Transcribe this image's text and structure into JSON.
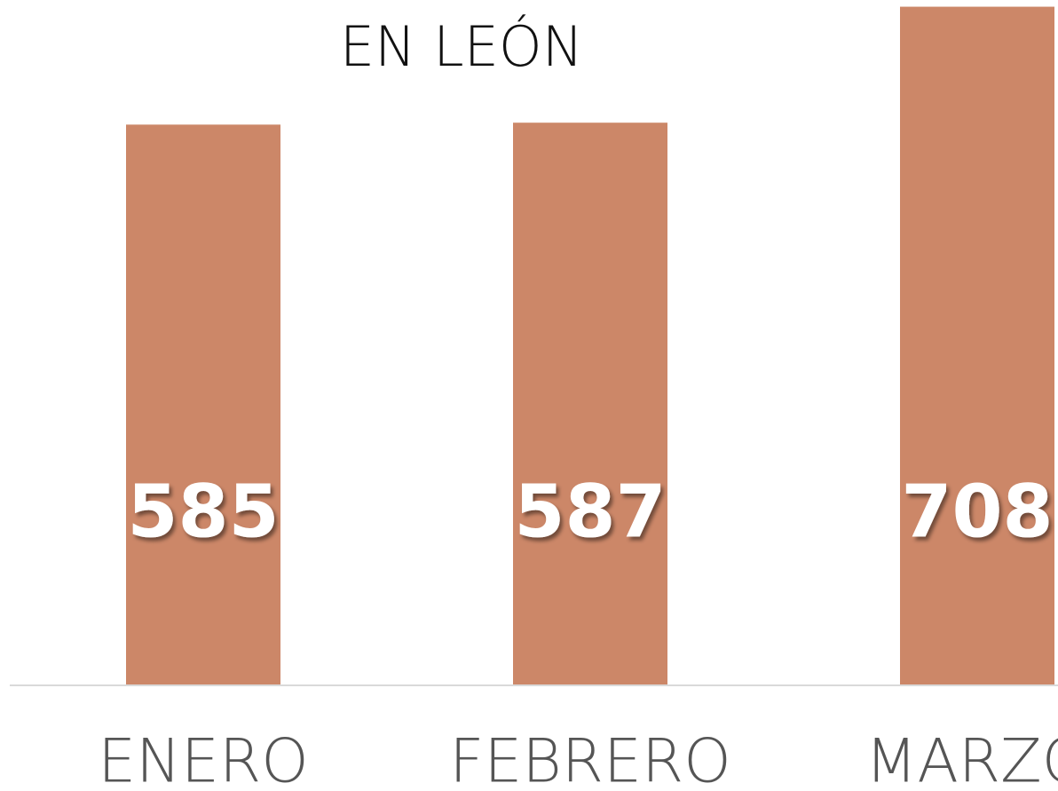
{
  "chart_data": {
    "type": "bar",
    "title": "EN LEÓN",
    "categories": [
      "ENERO",
      "FEBRERO",
      "MARZO"
    ],
    "values": [
      585,
      587,
      708
    ],
    "color": "#cc8768",
    "ylim": [
      0,
      715
    ]
  }
}
